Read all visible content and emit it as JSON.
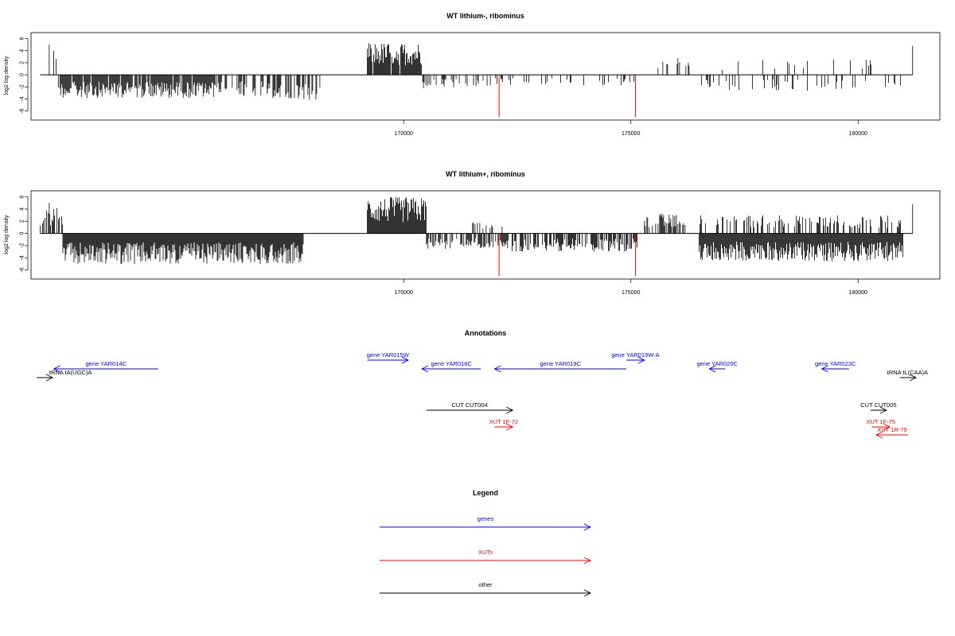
{
  "colors": {
    "gene": "#0000ff",
    "xut": "#ff0000",
    "other": "#000000",
    "bar": "#000000",
    "highlight": "#ff0000",
    "frame": "#000000",
    "background": "#ffffff"
  },
  "chart_data": [
    {
      "type": "bar",
      "title": "WT lithium-, ribominus",
      "ylabel": "log2 log density",
      "xlim": [
        161800,
        181800
      ],
      "ylim": [
        -7.5,
        7
      ],
      "yticks": [
        6,
        4,
        2,
        0,
        -2,
        -4,
        -6
      ],
      "xticks": [
        170000,
        175000,
        180000
      ],
      "grid": false,
      "data_range": [
        162000,
        181200
      ],
      "highlight_positions": [
        172100,
        175100
      ],
      "highlight_values": [
        -7,
        -7
      ],
      "series": [
        {
          "x_range": [
            162000,
            162400
          ],
          "level": 3.5,
          "sign": 1,
          "density": 0.15
        },
        {
          "x_range": [
            162400,
            166000
          ],
          "level": 3.2,
          "sign": -1,
          "density": 0.9
        },
        {
          "x_range": [
            166000,
            167000
          ],
          "level": 3.0,
          "sign": -1,
          "density": 0.4
        },
        {
          "x_range": [
            167000,
            168200
          ],
          "level": 3.5,
          "sign": -1,
          "density": 0.5
        },
        {
          "x_range": [
            169200,
            170400
          ],
          "level": 4.5,
          "sign": 1,
          "density": 0.95
        },
        {
          "x_range": [
            170400,
            172000
          ],
          "level": 2.0,
          "sign": -1,
          "density": 0.25
        },
        {
          "x_range": [
            172000,
            175100
          ],
          "level": 1.5,
          "sign": -1,
          "density": 0.18
        },
        {
          "x_range": [
            175300,
            176300
          ],
          "level": 2.5,
          "sign": 1,
          "density": 0.2
        },
        {
          "x_range": [
            176500,
            181000
          ],
          "level": 2.2,
          "sign": -1,
          "density": 0.15
        },
        {
          "x_range": [
            176500,
            181000
          ],
          "level": 2.2,
          "sign": 1,
          "density": 0.06
        }
      ]
    },
    {
      "type": "bar",
      "title": "WT lithium+, ribominus",
      "ylabel": "log2 log density",
      "xlim": [
        161800,
        181800
      ],
      "ylim": [
        -7.5,
        7
      ],
      "yticks": [
        6,
        4,
        2,
        0,
        -2,
        -4,
        -6
      ],
      "xticks": [
        170000,
        175000,
        180000
      ],
      "grid": false,
      "data_range": [
        162000,
        181200
      ],
      "highlight_positions": [
        172100,
        175100
      ],
      "highlight_values": [
        -7,
        -7
      ],
      "series": [
        {
          "x_range": [
            162000,
            162500
          ],
          "level": 3.5,
          "sign": 1,
          "density": 0.6
        },
        {
          "x_range": [
            162500,
            167800
          ],
          "level": 4.2,
          "sign": -1,
          "density": 1.0
        },
        {
          "x_range": [
            169200,
            170500
          ],
          "level": 5.0,
          "sign": 1,
          "density": 1.0
        },
        {
          "x_range": [
            170500,
            172300
          ],
          "level": 2.2,
          "sign": -1,
          "density": 0.7
        },
        {
          "x_range": [
            171500,
            172200
          ],
          "level": 1.5,
          "sign": 1,
          "density": 0.2
        },
        {
          "x_range": [
            172300,
            175200
          ],
          "level": 2.5,
          "sign": -1,
          "density": 0.6
        },
        {
          "x_range": [
            175300,
            176200
          ],
          "level": 2.8,
          "sign": 1,
          "density": 0.6
        },
        {
          "x_range": [
            176500,
            181000
          ],
          "level": 3.8,
          "sign": -1,
          "density": 1.0
        },
        {
          "x_range": [
            176500,
            181000
          ],
          "level": 2.5,
          "sign": 1,
          "density": 0.3
        }
      ]
    }
  ],
  "annotations": {
    "title": "Annotations",
    "features": [
      {
        "label": "tRNA tA(UGC)A",
        "type": "other",
        "start": 162000,
        "end": 162200,
        "strand": "+",
        "row": 1
      },
      {
        "label": "gene YAR014C",
        "type": "gene",
        "start": 162300,
        "end": 164600,
        "strand": "-",
        "row": 0
      },
      {
        "label": "gene YAR015W",
        "type": "gene",
        "start": 169200,
        "end": 170100,
        "strand": "+",
        "row": -1
      },
      {
        "label": "gene YAR018C",
        "type": "gene",
        "start": 170400,
        "end": 171700,
        "strand": "-",
        "row": 0
      },
      {
        "label": "gene YAR019C",
        "type": "gene",
        "start": 172000,
        "end": 174900,
        "strand": "-",
        "row": 0
      },
      {
        "label": "gene YAR019W-A",
        "type": "gene",
        "start": 174900,
        "end": 175300,
        "strand": "+",
        "row": -1
      },
      {
        "label": "gene YAR020C",
        "type": "gene",
        "start": 176800,
        "end": 177000,
        "strand": "-",
        "row": 0
      },
      {
        "label": "gene YAR023C",
        "type": "gene",
        "start": 179200,
        "end": 179800,
        "strand": "-",
        "row": 0
      },
      {
        "label": "tRNA tL(CAA)A",
        "type": "other",
        "start": 181000,
        "end": 181200,
        "strand": "+",
        "row": 1
      },
      {
        "label": "CUT CUT004",
        "type": "other",
        "start": 170500,
        "end": 172400,
        "strand": "+",
        "row": 4
      },
      {
        "label": "CUT CUT005",
        "type": "other",
        "start": 180300,
        "end": 180600,
        "strand": "+",
        "row": 4
      },
      {
        "label": "XUT 1F-72",
        "type": "xut",
        "start": 172000,
        "end": 172400,
        "strand": "+",
        "row": 6
      },
      {
        "label": "XUT 1F-75",
        "type": "xut",
        "start": 180300,
        "end": 180700,
        "strand": "+",
        "row": 6
      },
      {
        "label": "XUT 1R-79",
        "type": "xut",
        "start": 180400,
        "end": 181100,
        "strand": "-",
        "row": 7
      }
    ]
  },
  "legend": {
    "title": "Legend",
    "items": [
      {
        "label": "genes",
        "type": "gene"
      },
      {
        "label": "XUTs",
        "type": "xut"
      },
      {
        "label": "other",
        "type": "other"
      }
    ]
  }
}
